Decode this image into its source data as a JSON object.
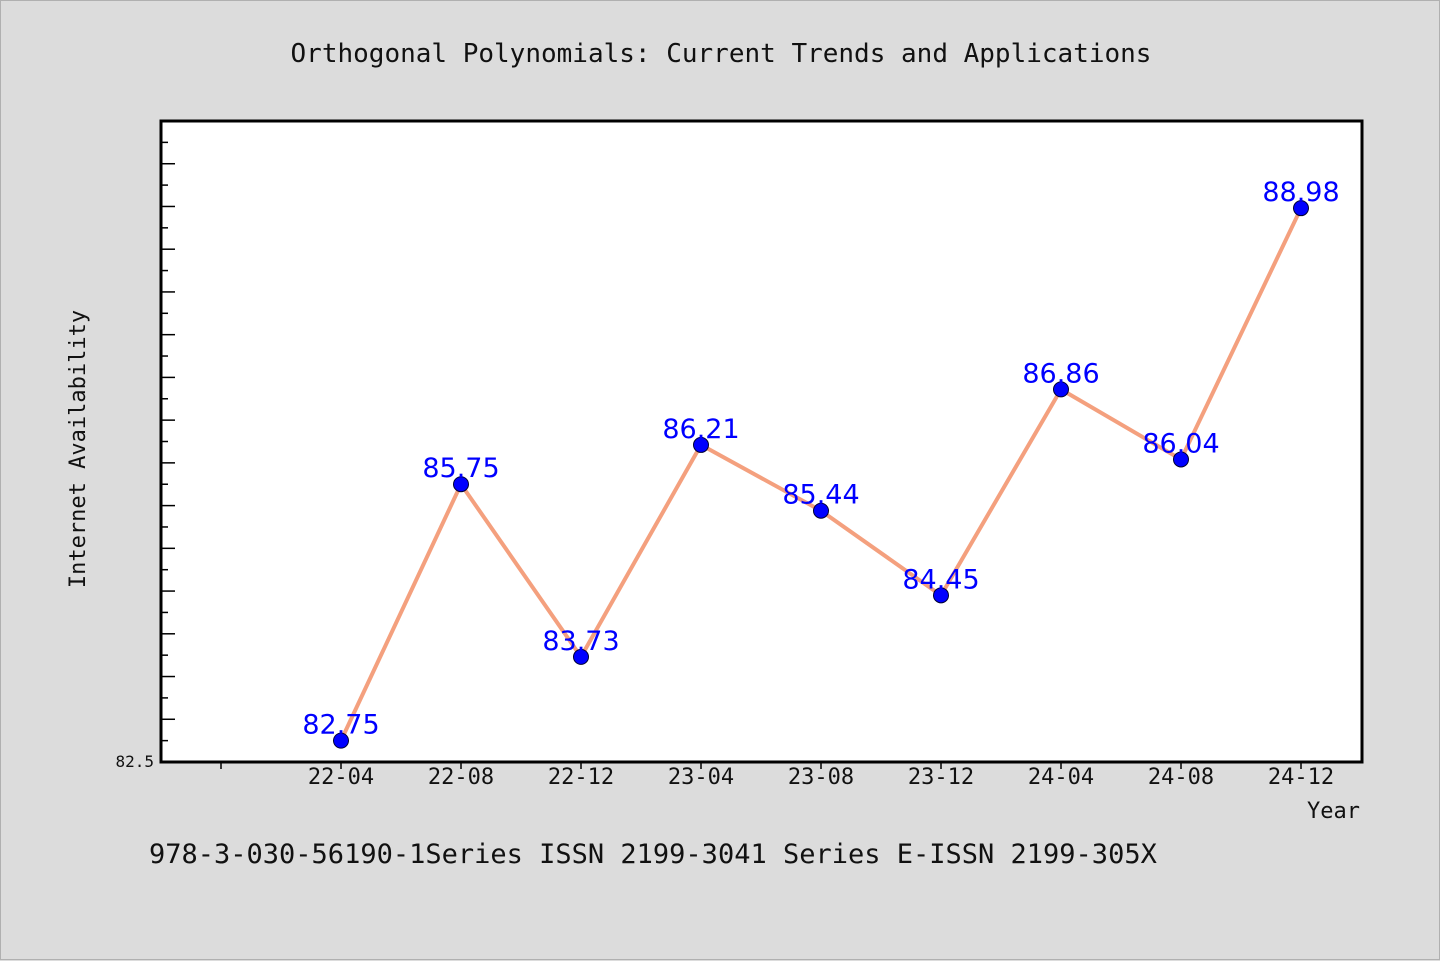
{
  "chart_data": {
    "type": "line",
    "title": "Orthogonal Polynomials: Current Trends and Applications",
    "xlabel": "Year",
    "ylabel": "Internet Availability",
    "categories": [
      "22-04",
      "22-08",
      "22-12",
      "23-04",
      "23-08",
      "23-12",
      "24-04",
      "24-08",
      "24-12"
    ],
    "series": [
      {
        "values": [
          82.75,
          85.75,
          83.73,
          86.21,
          85.44,
          84.45,
          86.86,
          86.04,
          88.98
        ],
        "labels": [
          "82.75",
          "85.75",
          "83.73",
          "86.21",
          "85.44",
          "84.45",
          "86.86",
          "86.04",
          "88.98"
        ]
      }
    ],
    "ylim": [
      82.5,
      90.0
    ],
    "y_min_label": "82.5",
    "grid": false,
    "colors": {
      "line": "#f4a07e",
      "marker": "#0000ff",
      "label": "#0000ff",
      "background": "#dcdcdc",
      "plot_background": "#ffffff"
    }
  },
  "footer": {
    "text": "978-3-030-56190-1Series ISSN 2199-3041 Series E-ISSN 2199-305X"
  }
}
